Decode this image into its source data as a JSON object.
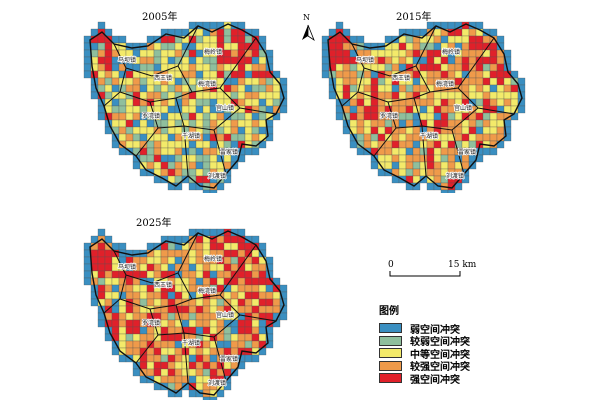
{
  "maps": [
    {
      "year": "2005年",
      "seed": 7,
      "labels": [
        "马坝镇",
        "梅岭镇",
        "西王镇",
        "梅湾镇",
        "宫山镇",
        "罗湾镇",
        "千湖镇",
        "雷家镇",
        "刘渡镇"
      ]
    },
    {
      "year": "2015年",
      "seed": 21,
      "labels": [
        "马坝镇",
        "梅岭镇",
        "西王镇",
        "梅湾镇",
        "宫山镇",
        "罗湾镇",
        "千湖镇",
        "雷家镇",
        "刘渡镇"
      ]
    },
    {
      "year": "2025年",
      "seed": 43,
      "labels": [
        "马坝镇",
        "梅岭镇",
        "西王镇",
        "梅湾镇",
        "宫山镇",
        "罗湾镇",
        "千湖镇",
        "雷家镇",
        "刘渡镇"
      ]
    }
  ],
  "north": {
    "label": "N"
  },
  "scale": {
    "zero": "0",
    "end": "15 km"
  },
  "legend": {
    "title": "图例",
    "items": [
      {
        "label": "弱空间冲突",
        "color": "#3a8fc1"
      },
      {
        "label": "较弱空间冲突",
        "color": "#8fbf9d"
      },
      {
        "label": "中等空间冲突",
        "color": "#f3ea6a"
      },
      {
        "label": "较强空间冲突",
        "color": "#ef9a4a"
      },
      {
        "label": "强空间冲突",
        "color": "#e0202a"
      }
    ]
  }
}
